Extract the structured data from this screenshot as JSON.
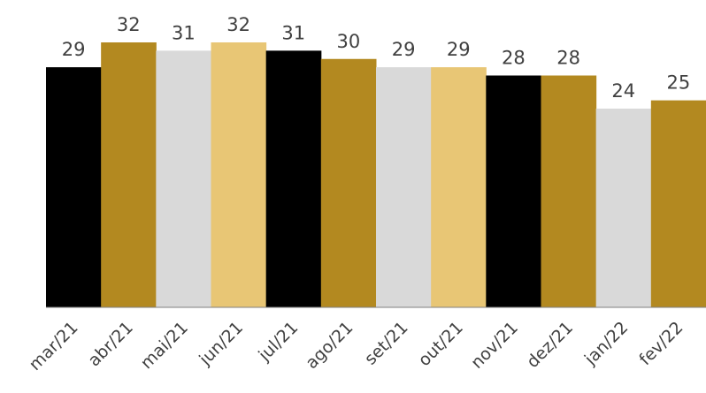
{
  "chart_data": {
    "type": "bar",
    "title": "",
    "xlabel": "",
    "ylabel": "",
    "categories": [
      "mar/21",
      "abr/21",
      "mai/21",
      "jun/21",
      "jul/21",
      "ago/21",
      "set/21",
      "out/21",
      "nov/21",
      "dez/21",
      "jan/22",
      "fev/22"
    ],
    "values": [
      29,
      32,
      31,
      32,
      31,
      30,
      29,
      29,
      28,
      28,
      24,
      25
    ],
    "bar_colors": [
      "#000000",
      "#B38920",
      "#D9D9D9",
      "#E8C675",
      "#000000",
      "#B38920",
      "#D9D9D9",
      "#E8C675",
      "#000000",
      "#B38920",
      "#D9D9D9",
      "#B38920"
    ],
    "ylim": [
      0,
      32
    ],
    "grid": false,
    "legend": "none",
    "data_labels": true
  }
}
